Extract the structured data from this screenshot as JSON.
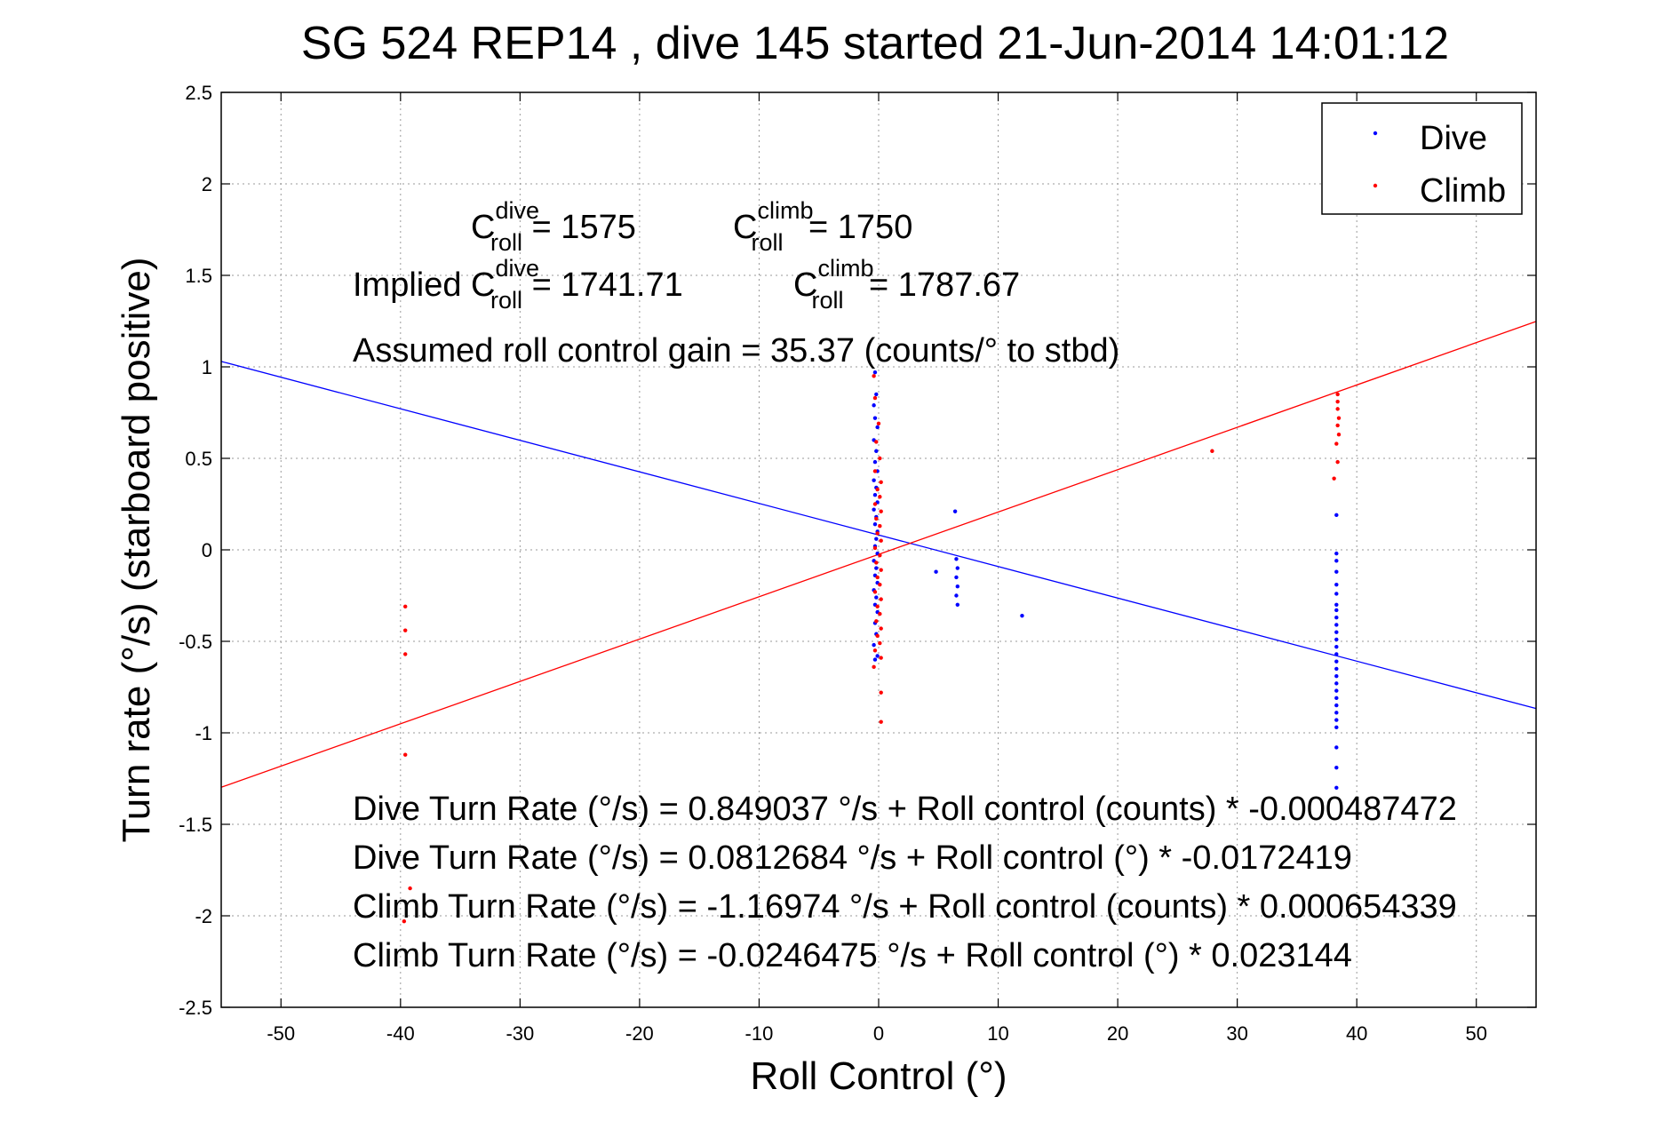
{
  "chart_data": {
    "type": "scatter",
    "title": "SG 524   REP14  , dive 145 started 21-Jun-2014 14:01:12",
    "xlabel": "Roll Control (°)",
    "ylabel": "Turn rate (°/s)  (starboard positive)",
    "xlim": [
      -55,
      55
    ],
    "ylim": [
      -2.5,
      2.5
    ],
    "xticks": [
      -50,
      -40,
      -30,
      -20,
      -10,
      0,
      10,
      20,
      30,
      40,
      50
    ],
    "yticks": [
      2.5,
      2,
      1.5,
      1,
      0.5,
      0,
      -0.5,
      -1,
      -1.5,
      -2,
      -2.5
    ],
    "xtick_labels": [
      "-50",
      "-40",
      "-30",
      "-20",
      "-10",
      "0",
      "10",
      "20",
      "30",
      "40",
      "50"
    ],
    "ytick_labels": [
      "2.5",
      "2",
      "1.5",
      "1",
      "0.5",
      "0",
      "-0.5",
      "-1",
      "-1.5",
      "-2",
      "-2.5"
    ],
    "grid": true,
    "legend_position": "top-right",
    "series": [
      {
        "name": "Dive",
        "color": "#0000ff",
        "points": [
          [
            -0.3,
            0.97
          ],
          [
            -0.2,
            0.85
          ],
          [
            -0.4,
            0.79
          ],
          [
            -0.3,
            0.72
          ],
          [
            -0.1,
            0.67
          ],
          [
            -0.4,
            0.6
          ],
          [
            -0.2,
            0.54
          ],
          [
            -0.3,
            0.48
          ],
          [
            -0.1,
            0.43
          ],
          [
            -0.4,
            0.38
          ],
          [
            -0.2,
            0.34
          ],
          [
            -0.3,
            0.3
          ],
          [
            -0.1,
            0.26
          ],
          [
            -0.4,
            0.22
          ],
          [
            -0.2,
            0.18
          ],
          [
            -0.3,
            0.14
          ],
          [
            -0.1,
            0.1
          ],
          [
            -0.2,
            0.06
          ],
          [
            -0.3,
            0.02
          ],
          [
            -0.1,
            -0.02
          ],
          [
            -0.4,
            -0.06
          ],
          [
            -0.2,
            -0.1
          ],
          [
            -0.3,
            -0.14
          ],
          [
            -0.1,
            -0.18
          ],
          [
            -0.4,
            -0.22
          ],
          [
            -0.2,
            -0.26
          ],
          [
            -0.3,
            -0.3
          ],
          [
            -0.1,
            -0.34
          ],
          [
            -0.3,
            -0.4
          ],
          [
            -0.2,
            -0.46
          ],
          [
            -0.4,
            -0.52
          ],
          [
            -0.1,
            -0.58
          ],
          [
            -0.3,
            -0.6
          ],
          [
            4.8,
            -0.12
          ],
          [
            6.4,
            0.21
          ],
          [
            6.5,
            -0.05
          ],
          [
            6.6,
            -0.1
          ],
          [
            6.5,
            -0.15
          ],
          [
            6.6,
            -0.2
          ],
          [
            6.5,
            -0.25
          ],
          [
            6.6,
            -0.3
          ],
          [
            12.0,
            -0.36
          ],
          [
            38.3,
            0.19
          ],
          [
            38.3,
            -0.02
          ],
          [
            38.3,
            -0.06
          ],
          [
            38.3,
            -0.12
          ],
          [
            38.3,
            -0.19
          ],
          [
            38.3,
            -0.24
          ],
          [
            38.3,
            -0.3
          ],
          [
            38.3,
            -0.33
          ],
          [
            38.3,
            -0.37
          ],
          [
            38.3,
            -0.41
          ],
          [
            38.3,
            -0.45
          ],
          [
            38.3,
            -0.49
          ],
          [
            38.3,
            -0.53
          ],
          [
            38.3,
            -0.57
          ],
          [
            38.3,
            -0.61
          ],
          [
            38.3,
            -0.65
          ],
          [
            38.3,
            -0.69
          ],
          [
            38.3,
            -0.73
          ],
          [
            38.3,
            -0.77
          ],
          [
            38.3,
            -0.81
          ],
          [
            38.3,
            -0.85
          ],
          [
            38.3,
            -0.89
          ],
          [
            38.3,
            -0.93
          ],
          [
            38.3,
            -0.97
          ],
          [
            38.3,
            -1.08
          ],
          [
            38.3,
            -1.19
          ],
          [
            38.3,
            -1.3
          ]
        ],
        "fit": {
          "intercept": 0.0812684,
          "slope": -0.0172419
        }
      },
      {
        "name": "Climb",
        "color": "#ff0000",
        "points": [
          [
            -39.6,
            -0.31
          ],
          [
            -39.6,
            -0.44
          ],
          [
            -39.6,
            -0.57
          ],
          [
            -39.6,
            -1.12
          ],
          [
            -39.2,
            -1.85
          ],
          [
            -39.7,
            -2.03
          ],
          [
            -0.4,
            0.95
          ],
          [
            -0.3,
            0.83
          ],
          [
            0.0,
            0.69
          ],
          [
            -0.2,
            0.59
          ],
          [
            0.1,
            0.5
          ],
          [
            -0.3,
            0.43
          ],
          [
            0.2,
            0.37
          ],
          [
            -0.1,
            0.33
          ],
          [
            0.1,
            0.29
          ],
          [
            -0.3,
            0.25
          ],
          [
            0.2,
            0.21
          ],
          [
            -0.2,
            0.17
          ],
          [
            0.1,
            0.13
          ],
          [
            -0.1,
            0.09
          ],
          [
            0.2,
            0.05
          ],
          [
            -0.3,
            0.01
          ],
          [
            0.1,
            -0.03
          ],
          [
            -0.2,
            -0.07
          ],
          [
            0.2,
            -0.11
          ],
          [
            -0.1,
            -0.15
          ],
          [
            0.1,
            -0.19
          ],
          [
            -0.3,
            -0.23
          ],
          [
            0.2,
            -0.27
          ],
          [
            -0.1,
            -0.31
          ],
          [
            0.1,
            -0.35
          ],
          [
            -0.2,
            -0.39
          ],
          [
            0.2,
            -0.43
          ],
          [
            -0.1,
            -0.47
          ],
          [
            0.1,
            -0.51
          ],
          [
            -0.3,
            -0.55
          ],
          [
            0.2,
            -0.59
          ],
          [
            -0.4,
            -0.64
          ],
          [
            0.2,
            -0.78
          ],
          [
            0.2,
            -0.94
          ],
          [
            27.9,
            0.54
          ],
          [
            38.1,
            0.39
          ],
          [
            38.4,
            0.48
          ],
          [
            38.3,
            0.58
          ],
          [
            38.5,
            0.63
          ],
          [
            38.4,
            0.68
          ],
          [
            38.5,
            0.72
          ],
          [
            38.4,
            0.77
          ],
          [
            38.4,
            0.81
          ],
          [
            38.4,
            0.85
          ]
        ],
        "fit": {
          "intercept": -0.0246475,
          "slope": 0.023144
        }
      }
    ],
    "annotations": {
      "c_dive_main": "C",
      "c_dive_sup": "dive",
      "c_dive_sub": "roll",
      "c_dive_val": " = 1575",
      "c_climb_main": "C",
      "c_climb_sup": "climb",
      "c_climb_sub": "roll",
      "c_climb_val": " = 1750",
      "implied_prefix": "Implied C",
      "implied_dive_sup": "dive",
      "implied_dive_sub": "roll",
      "implied_dive_val": " = 1741.71",
      "implied_climb_main": "C",
      "implied_climb_sup": "climb",
      "implied_climb_sub": "roll",
      "implied_climb_val": " = 1787.67",
      "gain": "Assumed roll control gain = 35.37 (counts/° to stbd)",
      "eq1": "Dive Turn Rate (°/s) = 0.849037 °/s + Roll control (counts) * -0.000487472",
      "eq2": "Dive Turn Rate (°/s) = 0.0812684 °/s + Roll control (°) * -0.0172419",
      "eq3": "Climb Turn Rate (°/s) = -1.16974 °/s + Roll control (counts) * 0.000654339",
      "eq4": "Climb Turn Rate (°/s) = -0.0246475 °/s + Roll control (°) * 0.023144"
    }
  }
}
